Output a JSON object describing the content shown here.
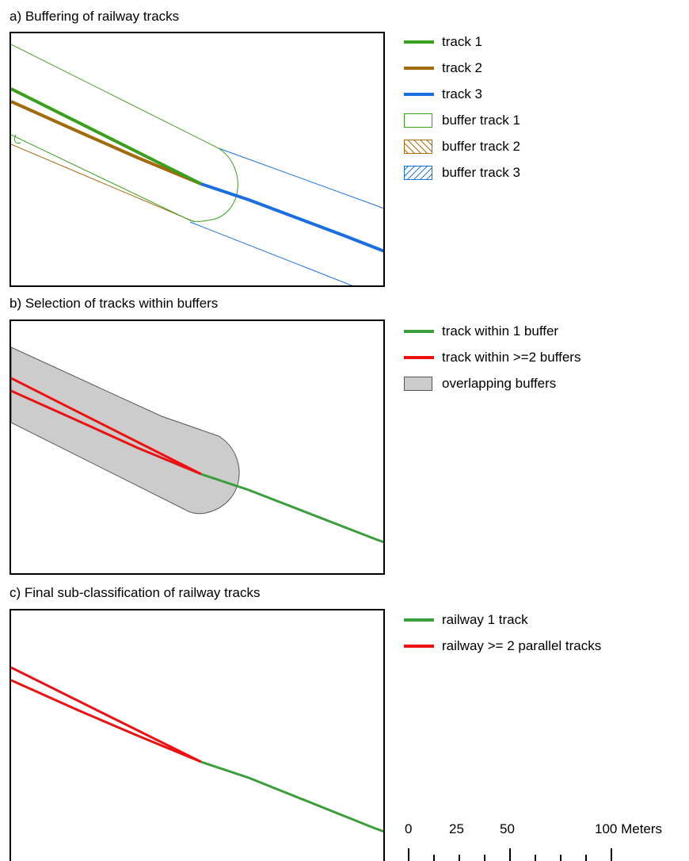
{
  "panels": [
    {
      "title": "a) Buffering of railway tracks",
      "legend": [
        {
          "label": "track 1",
          "type": "line",
          "color": "#3a9e1e"
        },
        {
          "label": "track 2",
          "type": "line",
          "color": "#a36a0a"
        },
        {
          "label": "track 3",
          "type": "line",
          "color": "#1a6fe0"
        },
        {
          "label": "buffer track 1",
          "type": "box-outline",
          "color": "#3a9e1e"
        },
        {
          "label": "buffer track 2",
          "type": "box-hatch-back",
          "color": "#a36a0a"
        },
        {
          "label": "buffer track 3",
          "type": "box-hatch-fwd",
          "color": "#1a6fe0"
        }
      ]
    },
    {
      "title": "b) Selection of tracks within buffers",
      "legend": [
        {
          "label": "track within 1 buffer",
          "type": "line",
          "color": "#3a9e3a"
        },
        {
          "label": "track within >=2 buffers",
          "type": "line",
          "color": "#ee1111"
        },
        {
          "label": "overlapping buffers",
          "type": "box-fill",
          "color": "#cccccc"
        }
      ]
    },
    {
      "title": "c) Final sub-classification of railway tracks",
      "legend": [
        {
          "label": "railway 1 track",
          "type": "line",
          "color": "#3a9e3a"
        },
        {
          "label": "railway >= 2 parallel tracks",
          "type": "line",
          "color": "#ee1111"
        }
      ]
    }
  ],
  "scale_bar": {
    "labels": [
      "0",
      "25",
      "50",
      "100 Meters"
    ]
  }
}
